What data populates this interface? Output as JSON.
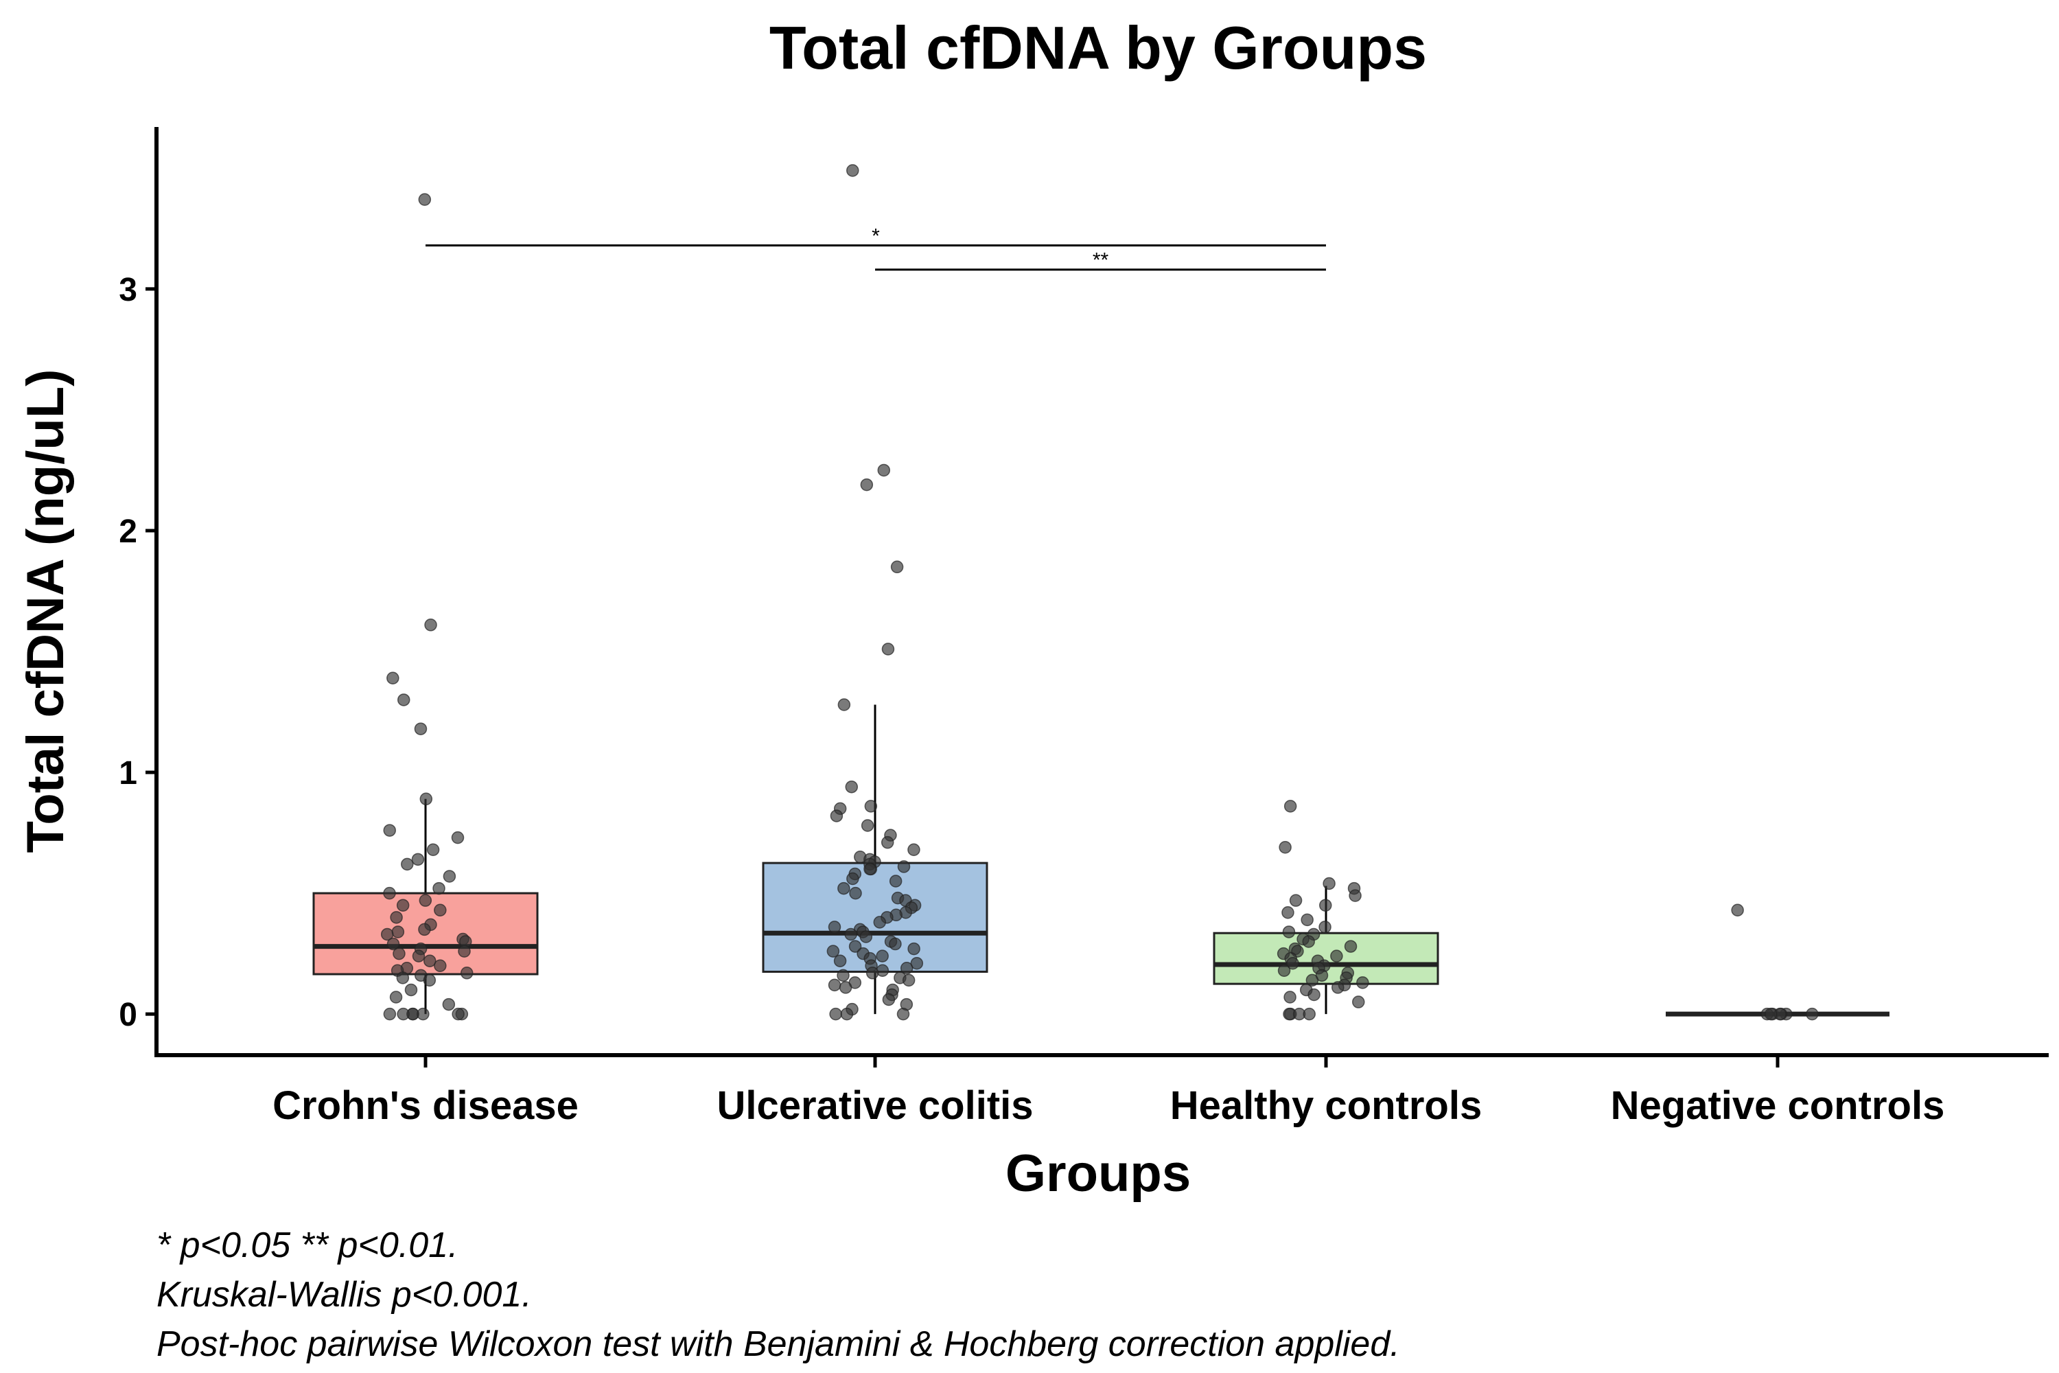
{
  "chart_data": {
    "type": "box",
    "title": "Total cfDNA by Groups",
    "xlabel": "Groups",
    "ylabel": "Total cfDNA (ng/uL)",
    "ylim": [
      -0.17,
      3.67
    ],
    "yticks": [
      0,
      1,
      2,
      3
    ],
    "legend": "none",
    "categories": [
      "Crohn's disease",
      "Ulcerative colitis",
      "Healthy controls",
      "Negative controls"
    ],
    "colors": [
      "#f8a19c",
      "#a4c2e0",
      "#c3e9b7",
      "#ffffff"
    ],
    "boxes": [
      {
        "category": "Crohn's disease",
        "q1": 0.165,
        "median": 0.28,
        "q3": 0.5,
        "whisker_low": 0.0,
        "whisker_high": 0.89
      },
      {
        "category": "Ulcerative colitis",
        "q1": 0.175,
        "median": 0.335,
        "q3": 0.625,
        "whisker_low": 0.0,
        "whisker_high": 1.28
      },
      {
        "category": "Healthy controls",
        "q1": 0.125,
        "median": 0.205,
        "q3": 0.335,
        "whisker_low": 0.0,
        "whisker_high": 0.53
      },
      {
        "category": "Negative controls",
        "q1": 0.0,
        "median": 0.0,
        "q3": 0.0,
        "whisker_low": 0.0,
        "whisker_high": 0.0
      }
    ],
    "points": [
      {
        "category": "Crohn's disease",
        "values": [
          3.37,
          1.61,
          1.39,
          1.3,
          1.18,
          0.89,
          0.76,
          0.73,
          0.68,
          0.64,
          0.62,
          0.57,
          0.52,
          0.5,
          0.47,
          0.45,
          0.43,
          0.4,
          0.37,
          0.35,
          0.34,
          0.33,
          0.31,
          0.3,
          0.29,
          0.27,
          0.26,
          0.25,
          0.24,
          0.22,
          0.2,
          0.19,
          0.18,
          0.17,
          0.16,
          0.15,
          0.14,
          0.1,
          0.07,
          0.04,
          0.0,
          0.0,
          0.0,
          0.0,
          0.0,
          0.0,
          0.0
        ]
      },
      {
        "category": "Ulcerative colitis",
        "values": [
          3.49,
          2.25,
          2.19,
          1.85,
          1.51,
          1.28,
          0.94,
          0.86,
          0.85,
          0.82,
          0.78,
          0.74,
          0.71,
          0.68,
          0.65,
          0.64,
          0.63,
          0.62,
          0.61,
          0.6,
          0.6,
          0.58,
          0.56,
          0.55,
          0.52,
          0.5,
          0.48,
          0.47,
          0.45,
          0.44,
          0.42,
          0.41,
          0.4,
          0.38,
          0.36,
          0.35,
          0.34,
          0.33,
          0.32,
          0.3,
          0.29,
          0.28,
          0.27,
          0.26,
          0.25,
          0.24,
          0.23,
          0.22,
          0.21,
          0.2,
          0.19,
          0.18,
          0.17,
          0.16,
          0.15,
          0.14,
          0.13,
          0.12,
          0.11,
          0.1,
          0.08,
          0.06,
          0.04,
          0.02,
          0.0,
          0.0,
          0.0
        ]
      },
      {
        "category": "Healthy controls",
        "values": [
          0.86,
          0.69,
          0.54,
          0.52,
          0.49,
          0.47,
          0.45,
          0.42,
          0.39,
          0.36,
          0.34,
          0.33,
          0.31,
          0.3,
          0.28,
          0.27,
          0.26,
          0.25,
          0.24,
          0.23,
          0.22,
          0.21,
          0.2,
          0.19,
          0.18,
          0.17,
          0.16,
          0.15,
          0.14,
          0.13,
          0.12,
          0.11,
          0.1,
          0.08,
          0.07,
          0.05,
          0.0,
          0.0,
          0.0,
          0.0
        ]
      },
      {
        "category": "Negative controls",
        "values": [
          0.43,
          0.0,
          0.0,
          0.0,
          0.0,
          0.0,
          0.0,
          0.0
        ]
      }
    ],
    "significance": [
      {
        "from": "Crohn's disease",
        "to": "Healthy controls",
        "label": "*",
        "y": 3.18
      },
      {
        "from": "Ulcerative colitis",
        "to": "Healthy controls",
        "label": "**",
        "y": 3.08
      }
    ]
  },
  "caption": {
    "line1": "* p<0.05 ** p<0.01.",
    "line2": "Kruskal-Wallis p<0.001.",
    "line3": "Post-hoc pairwise Wilcoxon test with Benjamini & Hochberg correction applied."
  }
}
